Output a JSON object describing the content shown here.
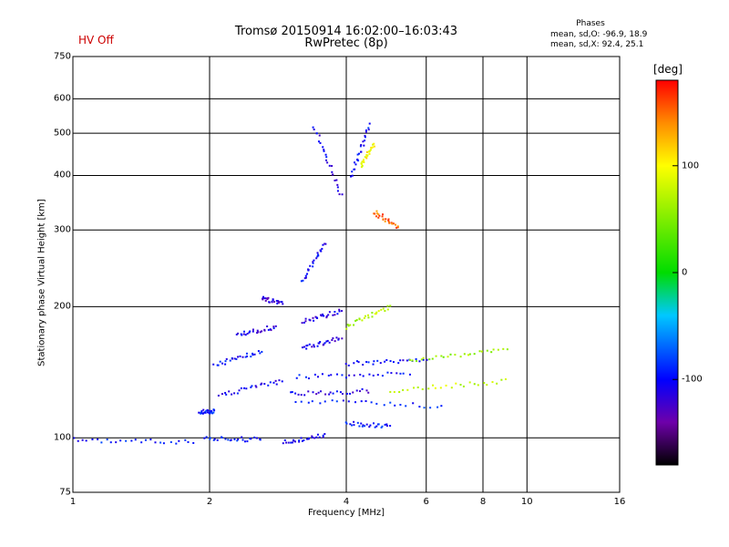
{
  "header": {
    "title_line1": "Tromsø 20150914 16:02:00–16:03:43",
    "title_line2": "RwPretec (8p)",
    "status": "HV Off",
    "status_color": "#cc0000"
  },
  "phases_box": {
    "title": "Phases",
    "line_o": "mean, sd,O: -96.9, 18.9",
    "line_x": "mean, sd,X:  92.4, 25.1"
  },
  "colorbar": {
    "unit": "[deg]",
    "ticks": [
      {
        "label": "100",
        "value": 100
      },
      {
        "label": "0",
        "value": 0
      },
      {
        "label": "-100",
        "value": -100
      }
    ],
    "range": [
      -180,
      180
    ]
  },
  "chart_data": {
    "type": "scatter",
    "xlabel": "Frequency [MHz]",
    "ylabel": "Stationary phase Virtual Height [km]",
    "x_scale": "log",
    "y_scale": "log",
    "xlim": [
      1,
      16
    ],
    "ylim": [
      75,
      750
    ],
    "grid": true,
    "x_ticks": [
      {
        "label": "1",
        "value": 1
      },
      {
        "label": "2",
        "value": 2
      },
      {
        "label": "4",
        "value": 4
      },
      {
        "label": "6",
        "value": 6
      },
      {
        "label": "8",
        "value": 8
      },
      {
        "label": "10",
        "value": 10
      },
      {
        "label": "16",
        "value": 16
      }
    ],
    "y_ticks": [
      {
        "label": "750",
        "value": 750
      },
      {
        "label": "600",
        "value": 600
      },
      {
        "label": "500",
        "value": 500
      },
      {
        "label": "400",
        "value": 400
      },
      {
        "label": "300",
        "value": 300
      },
      {
        "label": "200",
        "value": 200
      },
      {
        "label": "100",
        "value": 100
      },
      {
        "label": "75",
        "value": 75
      }
    ],
    "color_variable": "phase [deg]",
    "traces": [
      {
        "x0": 1.0,
        "x1": 1.85,
        "h0": 99,
        "h1": 98,
        "phase": -95
      },
      {
        "x0": 1.95,
        "x1": 2.6,
        "h0": 100,
        "h1": 99,
        "phase": -90
      },
      {
        "x0": 2.9,
        "x1": 3.6,
        "h0": 98,
        "h1": 101,
        "phase": -105
      },
      {
        "x0": 1.9,
        "x1": 2.05,
        "h0": 115,
        "h1": 115,
        "phase": -95
      },
      {
        "x0": 2.05,
        "x1": 2.6,
        "h0": 147,
        "h1": 158,
        "phase": -100
      },
      {
        "x0": 2.3,
        "x1": 2.8,
        "h0": 172,
        "h1": 180,
        "phase": -110
      },
      {
        "x0": 2.6,
        "x1": 2.9,
        "h0": 210,
        "h1": 203,
        "phase": -120
      },
      {
        "x0": 2.1,
        "x1": 2.9,
        "h0": 125,
        "h1": 135,
        "phase": -105
      },
      {
        "x0": 3.0,
        "x1": 4.5,
        "h0": 126,
        "h1": 128,
        "phase": -110
      },
      {
        "x0": 3.1,
        "x1": 5.5,
        "h0": 138,
        "h1": 140,
        "phase": -100
      },
      {
        "x0": 3.1,
        "x1": 6.5,
        "h0": 122,
        "h1": 118,
        "phase": -95
      },
      {
        "x0": 4.0,
        "x1": 6.0,
        "h0": 148,
        "h1": 151,
        "phase": -100
      },
      {
        "x0": 3.2,
        "x1": 3.9,
        "h0": 160,
        "h1": 170,
        "phase": -110
      },
      {
        "x0": 3.2,
        "x1": 3.9,
        "h0": 185,
        "h1": 195,
        "phase": -115
      },
      {
        "x0": 3.2,
        "x1": 3.6,
        "h0": 230,
        "h1": 280,
        "phase": -105
      },
      {
        "x0": 3.4,
        "x1": 3.9,
        "h0": 520,
        "h1": 360,
        "phase": -110
      },
      {
        "x0": 4.1,
        "x1": 4.5,
        "h0": 400,
        "h1": 520,
        "phase": -100
      },
      {
        "x0": 4.0,
        "x1": 5.0,
        "h0": 108,
        "h1": 106,
        "phase": -95
      },
      {
        "x0": 5.0,
        "x1": 9.0,
        "h0": 128,
        "h1": 135,
        "phase": 80
      },
      {
        "x0": 5.5,
        "x1": 9.0,
        "h0": 150,
        "h1": 160,
        "phase": 60
      },
      {
        "x0": 4.6,
        "x1": 5.2,
        "h0": 330,
        "h1": 305,
        "phase": 150
      },
      {
        "x0": 4.3,
        "x1": 4.6,
        "h0": 420,
        "h1": 470,
        "phase": 100
      },
      {
        "x0": 4.0,
        "x1": 5.0,
        "h0": 180,
        "h1": 200,
        "phase": 70
      }
    ]
  }
}
